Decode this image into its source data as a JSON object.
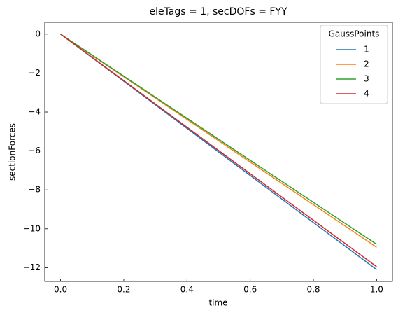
{
  "chart_data": {
    "type": "line",
    "title": "eleTags = 1, secDOFs = FYY",
    "x_label": "time",
    "y_label": "sectionForces",
    "x": [
      0,
      1
    ],
    "series": [
      {
        "name": "1",
        "color": "#1f77b4",
        "values": [
          0,
          -12.1
        ]
      },
      {
        "name": "2",
        "color": "#ff7f0e",
        "values": [
          0,
          -10.95
        ]
      },
      {
        "name": "3",
        "color": "#2ca02c",
        "values": [
          0,
          -10.8
        ]
      },
      {
        "name": "4",
        "color": "#d62728",
        "values": [
          0,
          -11.95
        ]
      }
    ],
    "legend_title": "GaussPoints",
    "legend_position": "upper right",
    "xlim": [
      -0.05,
      1.05
    ],
    "xticks": [
      {
        "value": 0,
        "label": "0.0"
      },
      {
        "value": 0.2,
        "label": "0.2"
      },
      {
        "value": 0.4,
        "label": "0.4"
      },
      {
        "value": 0.6,
        "label": "0.6"
      },
      {
        "value": 0.8,
        "label": "0.8"
      },
      {
        "value": 1,
        "label": "1.0"
      }
    ],
    "ylim": [
      -12.705,
      0.605
    ],
    "yticks": [
      {
        "value": -12,
        "label": "−12"
      },
      {
        "value": -10,
        "label": "−10"
      },
      {
        "value": -8,
        "label": "−8"
      },
      {
        "value": -6,
        "label": "−6"
      },
      {
        "value": -4,
        "label": "−4"
      },
      {
        "value": -2,
        "label": "−2"
      },
      0
    ],
    "grid": false
  }
}
